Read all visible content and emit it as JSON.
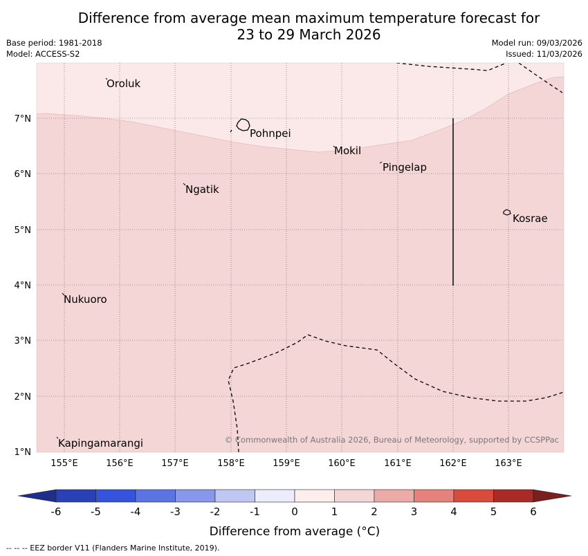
{
  "title_line1": "Difference from average mean maximum temperature forecast for",
  "title_line2": "23 to 29 March 2026",
  "base_period": "Base period: 1981-2018",
  "model": "Model: ACCESS-S2",
  "model_run": "Model run: 09/03/2026",
  "issued": "Issued: 11/03/2026",
  "map": {
    "lon_range": [
      154.5,
      164.0
    ],
    "lat_range": [
      1.0,
      8.0
    ],
    "lon_ticks": [
      "155°E",
      "156°E",
      "157°E",
      "158°E",
      "159°E",
      "160°E",
      "161°E",
      "162°E",
      "163°E"
    ],
    "lat_ticks": [
      "7°N",
      "6°N",
      "5°N",
      "4°N",
      "3°N",
      "2°N",
      "1°N"
    ],
    "places": [
      {
        "name": "Oroluk",
        "lon": 155.75,
        "lat": 7.6
      },
      {
        "name": "Pohnpei",
        "lon": 158.25,
        "lat": 6.9
      },
      {
        "name": "Mokil",
        "lon": 159.85,
        "lat": 6.68
      },
      {
        "name": "Pingelap",
        "lon": 160.75,
        "lat": 6.2
      },
      {
        "name": "Ngatik",
        "lon": 157.2,
        "lat": 5.8
      },
      {
        "name": "Kosrae",
        "lon": 163.0,
        "lat": 5.3
      },
      {
        "name": "Nukuoro",
        "lon": 154.95,
        "lat": 3.85
      },
      {
        "name": "Kapingamarangi",
        "lon": 154.85,
        "lat": 1.1
      }
    ],
    "category_low": "0 to 1 °C",
    "category_high": "1 to 2 °C",
    "copyright": "© Commonwealth of Australia 2026, Bureau of Meteorology, supported by CCSPPac"
  },
  "colorbar": {
    "label": "Difference from average (°C)",
    "ticks": [
      "-6",
      "-5",
      "-4",
      "-3",
      "-2",
      "-1",
      "0",
      "1",
      "2",
      "3",
      "4",
      "5",
      "6"
    ],
    "colors": [
      "#1f2e8a",
      "#2a41b6",
      "#3653dd",
      "#5b74e3",
      "#8797ea",
      "#c0c7f3",
      "#ececfa",
      "#fdeeee",
      "#f4d6d6",
      "#ecaba8",
      "#e4827d",
      "#d94b3d",
      "#a92a26",
      "#7a1e1e"
    ]
  },
  "footer": "--  --  -- EEZ border V11 (Flanders Marine Institute, 2019)."
}
